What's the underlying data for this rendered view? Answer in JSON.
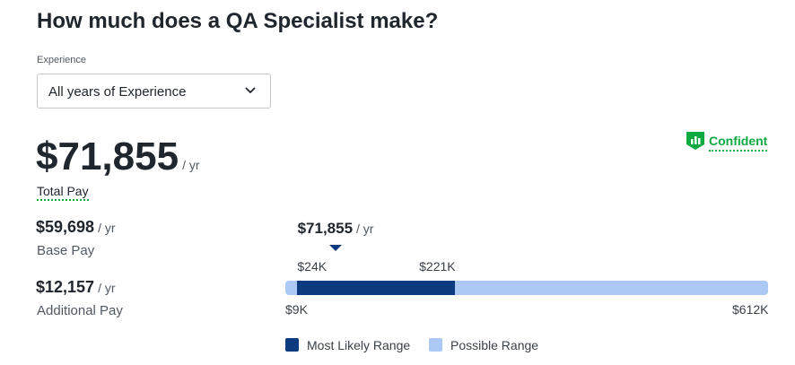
{
  "title": "How much does a QA Specialist make?",
  "filter": {
    "label": "Experience",
    "selected": "All years of Experience"
  },
  "confidence": "Confident",
  "total": {
    "amount": "$71,855",
    "unit": "/ yr",
    "label": "Total Pay"
  },
  "base": {
    "amount": "$59,698",
    "unit": "/ yr",
    "label": "Base Pay"
  },
  "additional": {
    "amount": "$12,157",
    "unit": "/ yr",
    "label": "Additional Pay"
  },
  "range": {
    "median": {
      "value": 71855,
      "label": "$71,855",
      "unit": "/ yr"
    },
    "likely_low": {
      "value": 24000,
      "label": "$24K"
    },
    "likely_high": {
      "value": 221000,
      "label": "$221K"
    },
    "min": {
      "value": 9000,
      "label": "$9K"
    },
    "max": {
      "value": 612000,
      "label": "$612K"
    },
    "likely_color": "#0d3b80",
    "possible_color": "#abc9f4",
    "legend": [
      "Most Likely Range",
      "Possible Range"
    ]
  }
}
